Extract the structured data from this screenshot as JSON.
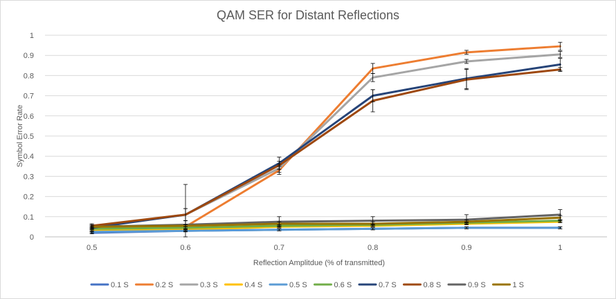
{
  "chart_data": {
    "type": "line",
    "title": "QAM SER for Distant Reflections",
    "xlabel": "Reflection Amplitdue (% of transmitted)",
    "ylabel": "Symbol Error Rate",
    "x": [
      "0.5",
      "0.6",
      "0.7",
      "0.8",
      "0.9",
      "1"
    ],
    "ylim": [
      0,
      1
    ],
    "yticks": [
      "0",
      "0.1",
      "0.2",
      "0.3",
      "0.4",
      "0.5",
      "0.6",
      "0.7",
      "0.8",
      "0.9",
      "1"
    ],
    "grid": true,
    "legend_position": "bottom",
    "series": [
      {
        "name": "0.1 S",
        "color": "#4472c4",
        "values": [
          0.02,
          0.03,
          0.035,
          0.04,
          0.045,
          0.045
        ],
        "err": [
          0.005,
          0.005,
          0.005,
          0.005,
          0.005,
          0.005
        ]
      },
      {
        "name": "0.2 S",
        "color": "#ed7d31",
        "values": [
          0.05,
          0.05,
          0.33,
          0.835,
          0.915,
          0.945
        ],
        "err": [
          0.005,
          0.01,
          0.02,
          0.025,
          0.01,
          0.02
        ]
      },
      {
        "name": "0.3 S",
        "color": "#a5a5a5",
        "values": [
          0.05,
          0.11,
          0.34,
          0.79,
          0.87,
          0.905
        ],
        "err": [
          0.005,
          0.03,
          0.02,
          0.02,
          0.01,
          0.015
        ]
      },
      {
        "name": "0.4 S",
        "color": "#ffc000",
        "values": [
          0.03,
          0.035,
          0.05,
          0.055,
          0.065,
          0.075
        ],
        "err": [
          0.005,
          0.005,
          0.005,
          0.005,
          0.005,
          0.005
        ]
      },
      {
        "name": "0.5 S",
        "color": "#5b9bd5",
        "values": [
          0.025,
          0.03,
          0.035,
          0.04,
          0.045,
          0.045
        ],
        "err": [
          0.005,
          0.005,
          0.005,
          0.005,
          0.005,
          0.005
        ]
      },
      {
        "name": "0.6 S",
        "color": "#70ad47",
        "values": [
          0.04,
          0.045,
          0.055,
          0.06,
          0.07,
          0.08
        ],
        "err": [
          0.005,
          0.005,
          0.005,
          0.005,
          0.005,
          0.005
        ]
      },
      {
        "name": "0.7 S",
        "color": "#264478",
        "values": [
          0.045,
          0.11,
          0.365,
          0.7,
          0.785,
          0.855
        ],
        "err": [
          0.005,
          0.03,
          0.03,
          0.03,
          0.05,
          0.03
        ]
      },
      {
        "name": "0.8 S",
        "color": "#9e480e",
        "values": [
          0.055,
          0.11,
          0.355,
          0.675,
          0.78,
          0.83
        ],
        "err": [
          0.01,
          0.15,
          0.02,
          0.055,
          0.05,
          0.01
        ]
      },
      {
        "name": "0.9 S",
        "color": "#636363",
        "values": [
          0.05,
          0.06,
          0.075,
          0.08,
          0.085,
          0.11
        ],
        "err": [
          0.01,
          0.02,
          0.025,
          0.02,
          0.025,
          0.025
        ]
      },
      {
        "name": "1 S",
        "color": "#997300",
        "values": [
          0.05,
          0.055,
          0.065,
          0.065,
          0.075,
          0.095
        ],
        "err": [
          0.005,
          0.005,
          0.01,
          0.01,
          0.01,
          0.01
        ]
      }
    ]
  }
}
